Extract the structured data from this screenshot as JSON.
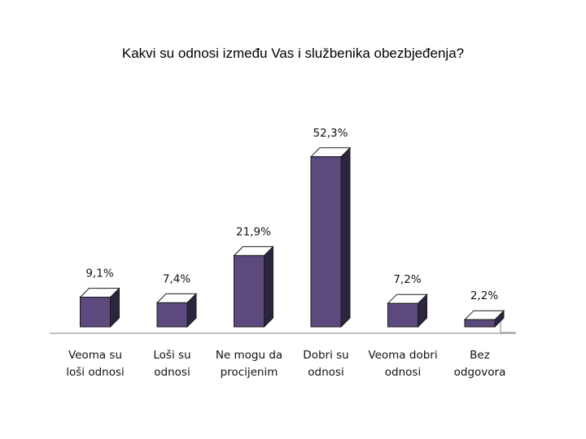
{
  "chart_data": {
    "type": "bar",
    "title": "Kakvi su odnosi između Vas i službenika obezbjeđenja?",
    "categories": [
      [
        "Veoma su",
        "loši odnosi"
      ],
      [
        "Loši su",
        "odnosi"
      ],
      [
        "Ne mogu da",
        "procijenim"
      ],
      [
        "Dobri su",
        "odnosi"
      ],
      [
        "Veoma dobri",
        "odnosi"
      ],
      [
        "Bez",
        "odgovora"
      ]
    ],
    "values": [
      9.1,
      7.4,
      21.9,
      52.3,
      7.2,
      2.2
    ],
    "value_labels": [
      "9,1%",
      "7,4%",
      "21,9%",
      "52,3%",
      "7,2%",
      "2,2%"
    ],
    "ylim": [
      0,
      60
    ],
    "grid": false,
    "legend": "none",
    "colors": {
      "bar_front": "#5c4a7f",
      "bar_side": "#2d2540",
      "bar_top": "#ffffff",
      "edge": "#1a1a1a"
    }
  }
}
